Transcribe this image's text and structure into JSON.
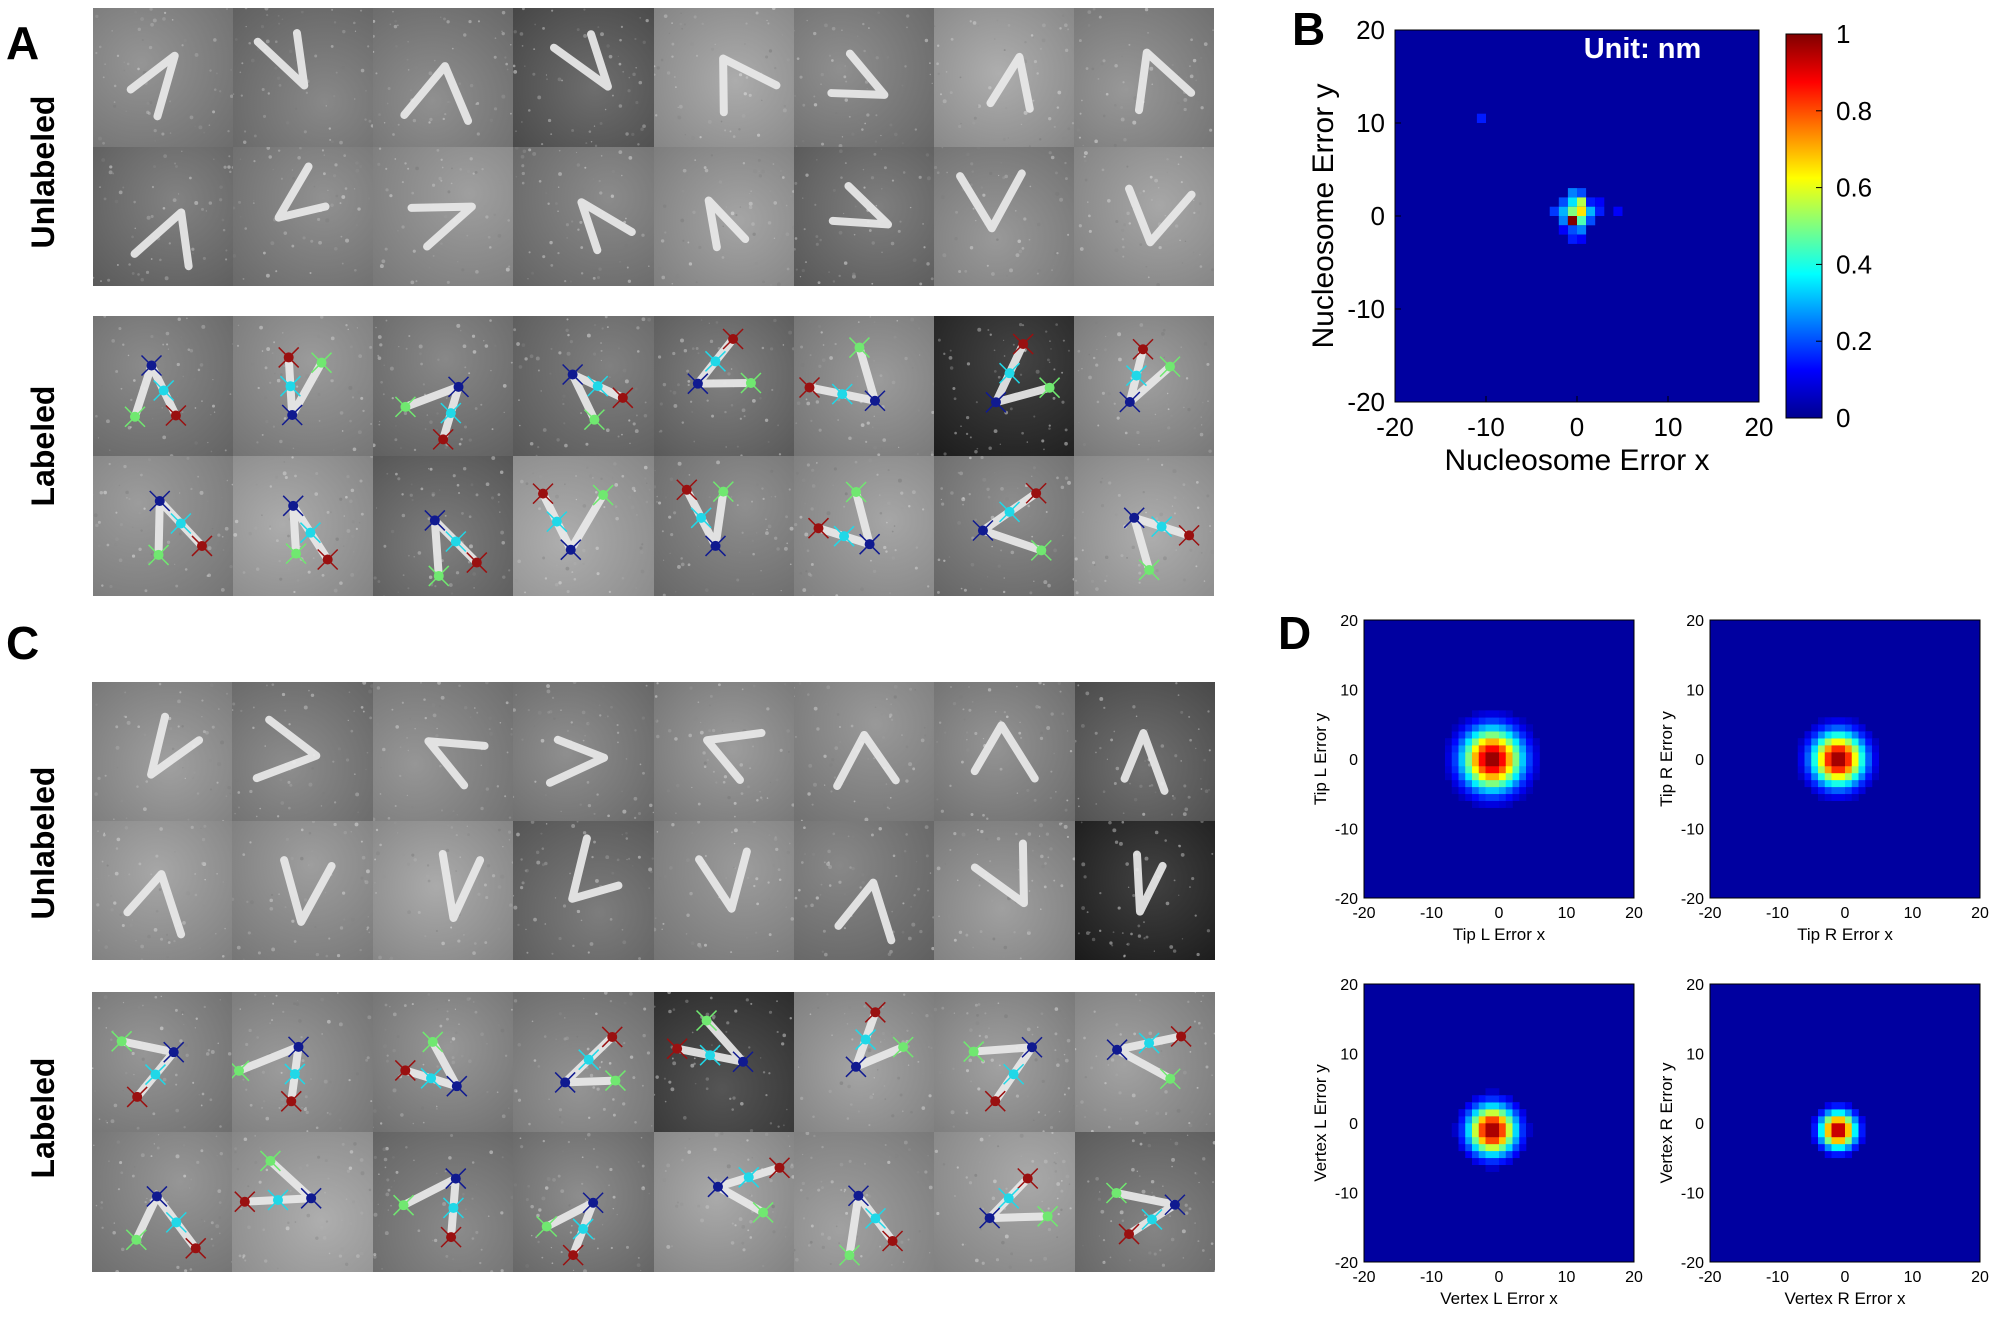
{
  "panels": {
    "A": {
      "letter": "A",
      "row_labels": [
        "Unlabeled",
        "Labeled"
      ]
    },
    "B": {
      "letter": "B"
    },
    "C": {
      "letter": "C",
      "row_labels": [
        "Unlabeled",
        "Labeled"
      ]
    },
    "D": {
      "letter": "D"
    }
  },
  "colors": {
    "heat_background": "#0000a0",
    "marker_red": "#9a1010",
    "marker_cyan": "#20d8e8",
    "marker_blue": "#101a90",
    "marker_green": "#70e870"
  },
  "chart_data": [
    {
      "type": "heatmap",
      "panel": "B",
      "title": "",
      "annotation": "Unit: nm",
      "xlabel": "Nucleosome Error x",
      "ylabel": "Nucleosome Error y",
      "xlim": [
        -20,
        20
      ],
      "ylim": [
        -20,
        20
      ],
      "xticks": [
        -20,
        -10,
        0,
        10,
        20
      ],
      "yticks": [
        -20,
        -10,
        0,
        10,
        20
      ],
      "colorbar": {
        "range": [
          0,
          1
        ],
        "ticks": [
          0,
          0.2,
          0.4,
          0.6,
          0.8,
          1
        ]
      },
      "cell_size": 1,
      "cells": [
        {
          "x": -11,
          "y": 10,
          "v": 0.15
        },
        {
          "x": -1,
          "y": 2,
          "v": 0.25
        },
        {
          "x": 0,
          "y": 2,
          "v": 0.2
        },
        {
          "x": -2,
          "y": 1,
          "v": 0.2
        },
        {
          "x": -1,
          "y": 1,
          "v": 0.35
        },
        {
          "x": 0,
          "y": 1,
          "v": 0.55
        },
        {
          "x": 1,
          "y": 1,
          "v": 0.15
        },
        {
          "x": 2,
          "y": 1,
          "v": 0.12
        },
        {
          "x": -3,
          "y": 0,
          "v": 0.18
        },
        {
          "x": -2,
          "y": 0,
          "v": 0.3
        },
        {
          "x": -1,
          "y": 0,
          "v": 0.5
        },
        {
          "x": 0,
          "y": 0,
          "v": 0.65
        },
        {
          "x": 1,
          "y": 0,
          "v": 0.3
        },
        {
          "x": 2,
          "y": 0,
          "v": 0.15
        },
        {
          "x": 4,
          "y": 0,
          "v": 0.12
        },
        {
          "x": -2,
          "y": -1,
          "v": 0.25
        },
        {
          "x": -1,
          "y": -1,
          "v": 1.0
        },
        {
          "x": 0,
          "y": -1,
          "v": 0.45
        },
        {
          "x": 1,
          "y": -1,
          "v": 0.2
        },
        {
          "x": -1,
          "y": -2,
          "v": 0.2
        },
        {
          "x": 0,
          "y": -2,
          "v": 0.25
        },
        {
          "x": -2,
          "y": -2,
          "v": 0.12
        },
        {
          "x": -1,
          "y": -3,
          "v": 0.15
        },
        {
          "x": 0,
          "y": -3,
          "v": 0.12
        }
      ]
    },
    {
      "type": "heatmap",
      "panel": "D",
      "title": "",
      "xlabel": "Tip L Error x",
      "ylabel": "Tip L Error y",
      "xlim": [
        -20,
        20
      ],
      "ylim": [
        -20,
        20
      ],
      "xticks": [
        -20,
        -10,
        0,
        10,
        20
      ],
      "yticks": [
        -20,
        -10,
        0,
        10,
        20
      ],
      "peak": {
        "x": -1,
        "y": 0
      },
      "spread": 3.0
    },
    {
      "type": "heatmap",
      "panel": "D",
      "title": "",
      "xlabel": "Tip R Error x",
      "ylabel": "Tip R Error y",
      "xlim": [
        -20,
        20
      ],
      "ylim": [
        -20,
        20
      ],
      "xticks": [
        -20,
        -10,
        0,
        10,
        20
      ],
      "yticks": [
        -20,
        -10,
        0,
        10,
        20
      ],
      "peak": {
        "x": -1,
        "y": 0
      },
      "spread": 2.6
    },
    {
      "type": "heatmap",
      "panel": "D",
      "title": "",
      "xlabel": "Vertex L Error x",
      "ylabel": "Vertex L Error y",
      "xlim": [
        -20,
        20
      ],
      "ylim": [
        -20,
        20
      ],
      "xticks": [
        -20,
        -10,
        0,
        10,
        20
      ],
      "yticks": [
        -20,
        -10,
        0,
        10,
        20
      ],
      "peak": {
        "x": -1,
        "y": -1
      },
      "spread": 2.4
    },
    {
      "type": "heatmap",
      "panel": "D",
      "title": "",
      "xlabel": "Vertex R Error x",
      "ylabel": "Vertex R Error y",
      "xlim": [
        -20,
        20
      ],
      "ylim": [
        -20,
        20
      ],
      "xticks": [
        -20,
        -10,
        0,
        10,
        20
      ],
      "yticks": [
        -20,
        -10,
        0,
        10,
        20
      ],
      "peak": {
        "x": -1,
        "y": -1
      },
      "spread": 1.8
    }
  ]
}
